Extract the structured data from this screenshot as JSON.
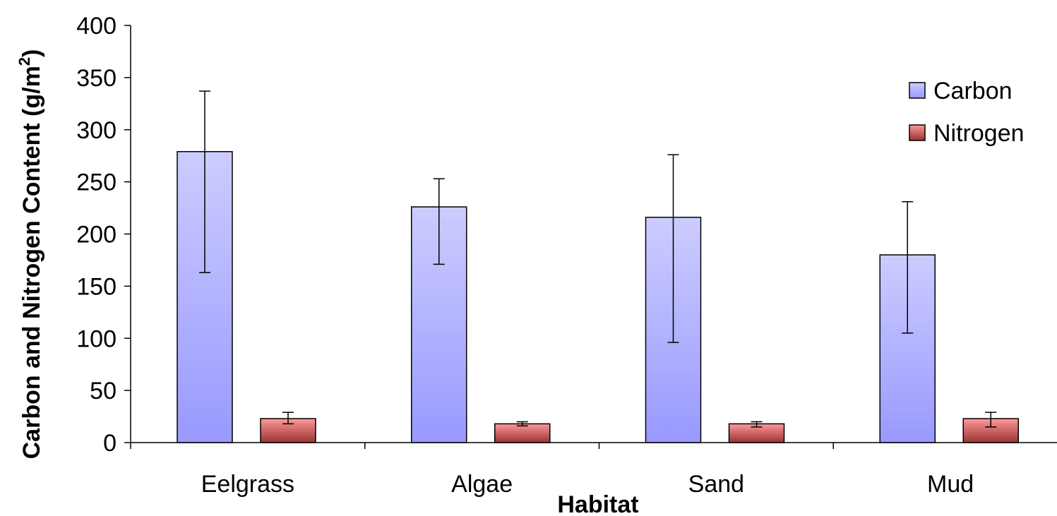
{
  "chart_data": {
    "type": "bar",
    "title": "",
    "xlabel": "Habitat",
    "ylabel_main": "Carbon and Nitrogen Content (g/m",
    "ylabel_sup": "2",
    "ylabel_close": ")",
    "categories": [
      "Eelgrass",
      "Algae",
      "Sand",
      "Mud"
    ],
    "ylim": [
      0,
      400
    ],
    "yticks": [
      0,
      50,
      100,
      150,
      200,
      250,
      300,
      350,
      400
    ],
    "grid": false,
    "legend_position": "top-right",
    "series": [
      {
        "name": "Carbon",
        "values": [
          279,
          226,
          216,
          180
        ],
        "error": [
          [
            163,
            337
          ],
          [
            171,
            253
          ],
          [
            96,
            276
          ],
          [
            105,
            231
          ]
        ],
        "color_top": "#ccccff",
        "color_bottom": "#9999ff",
        "stroke": "#000000"
      },
      {
        "name": "Nitrogen",
        "values": [
          23,
          18,
          18,
          23
        ],
        "error": [
          [
            18,
            29
          ],
          [
            16,
            20
          ],
          [
            15,
            20
          ],
          [
            15,
            29
          ]
        ],
        "color_top": "#ff9999",
        "color_bottom": "#993333",
        "stroke": "#000000"
      }
    ]
  }
}
